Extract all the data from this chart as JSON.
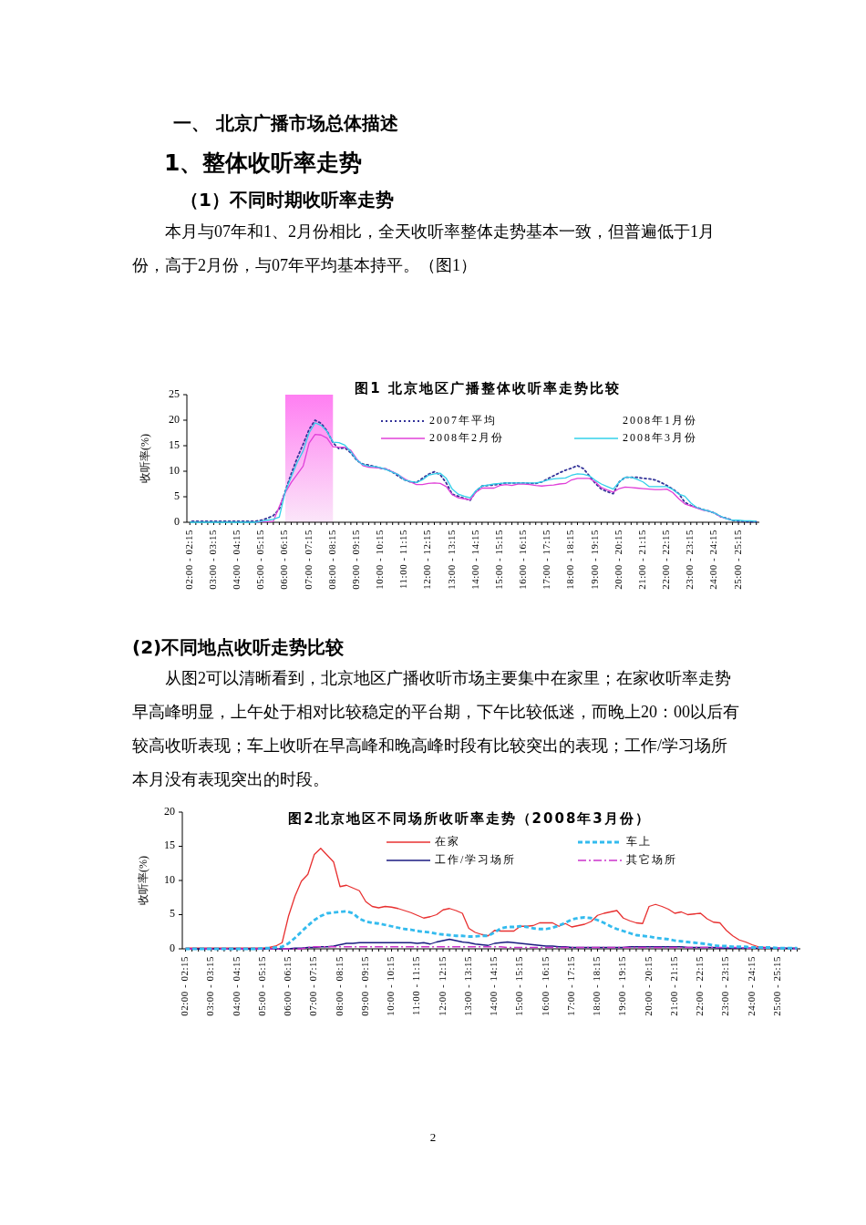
{
  "chart_data": [
    {
      "type": "line",
      "title": "图1  北京地区广播整体收听率走势比较",
      "ylabel": "收听率(%)",
      "legend": "top",
      "annotations": [
        "一、  北京广播市场总体描述",
        "1、整体收听率走势",
        "（1）不同时期收听率走势",
        "本月与07年和1、2月份相比，全天收听率整体走势基本一致，但普遍低于1月份，高于2月份，与07年平均基本持平。（图1）"
      ],
      "ylim": [
        0,
        25
      ],
      "yticks": [
        0,
        5,
        10,
        15,
        20,
        25
      ],
      "categories": [
        "02:00 - 02:15",
        null,
        null,
        null,
        "03:00 - 03:15",
        null,
        null,
        null,
        "04:00 - 04:15",
        null,
        null,
        null,
        "05:00 - 05:15",
        null,
        null,
        null,
        "06:00 - 06:15",
        null,
        null,
        null,
        "07:00 - 07:15",
        null,
        null,
        null,
        "08:00 - 08:15",
        null,
        null,
        null,
        "09:00 - 09:15",
        null,
        null,
        null,
        "10:00 - 10:15",
        null,
        null,
        null,
        "11:00 - 11:15",
        null,
        null,
        null,
        "12:00 - 12:15",
        null,
        null,
        null,
        "13:00 - 13:15",
        null,
        null,
        null,
        "14:00 - 14:15",
        null,
        null,
        null,
        "15:00 - 15:15",
        null,
        null,
        null,
        "16:00 - 16:15",
        null,
        null,
        null,
        "17:00 - 17:15",
        null,
        null,
        null,
        "18:00 - 18:15",
        null,
        null,
        null,
        "19:00 - 19:15",
        null,
        null,
        null,
        "20:00 - 20:15",
        null,
        null,
        null,
        "21:00 - 21:15",
        null,
        null,
        null,
        "22:00 - 22:15",
        null,
        null,
        null,
        "23:00 - 23:15",
        null,
        null,
        null,
        "24:00 - 24:15",
        null,
        null,
        null,
        "25:00 - 25:15",
        null,
        null,
        null
      ],
      "bands": [
        {
          "axis": "x",
          "from": "06:00 - 06:15",
          "to": "08:00 - 08:15",
          "color": "#ff7ff2"
        }
      ],
      "series": [
        {
          "name": "2007年平均",
          "color": "#333399",
          "line_style": "dotted",
          "values": [
            0.2,
            0.2,
            0.2,
            0.2,
            0.2,
            0.2,
            0.2,
            0.2,
            0.2,
            0.2,
            0.2,
            0.2,
            0.4,
            0.8,
            1.3,
            2.6,
            6.1,
            9.5,
            12.6,
            15.3,
            18.2,
            20.0,
            19.4,
            17.9,
            15.6,
            14.4,
            14.6,
            13.6,
            12.1,
            11.4,
            11.2,
            10.9,
            10.6,
            10.4,
            9.8,
            9.0,
            8.3,
            7.9,
            7.8,
            8.6,
            9.4,
            9.9,
            9.3,
            7.7,
            5.5,
            5.1,
            4.7,
            4.3,
            6.1,
            7.1,
            7.2,
            7.3,
            7.5,
            7.7,
            7.7,
            7.7,
            7.7,
            7.6,
            7.6,
            7.9,
            8.5,
            9.1,
            9.7,
            10.2,
            10.6,
            11.1,
            10.5,
            9.1,
            7.6,
            6.5,
            6.0,
            5.6,
            7.9,
            8.8,
            8.8,
            8.8,
            8.6,
            8.5,
            8.3,
            7.8,
            7.2,
            6.5,
            5.6,
            3.9,
            3.3,
            2.9,
            2.5,
            2.2,
            1.8,
            1.1,
            0.8,
            0.4,
            0.2,
            0.2,
            0.1,
            0.1
          ]
        },
        {
          "name": "2008年1月份",
          "line_style": "solid",
          "values": [
            null,
            null,
            null,
            null,
            null,
            null,
            null,
            null,
            null,
            null,
            null,
            null,
            null,
            null,
            null,
            null,
            null,
            null,
            null,
            null,
            null,
            null,
            null,
            null,
            null,
            null,
            null,
            null,
            null,
            null,
            null,
            null,
            null,
            null,
            null,
            null,
            null,
            null,
            null,
            null,
            null,
            null,
            null,
            null,
            null,
            null,
            null,
            null,
            null,
            null,
            null,
            null,
            null,
            null,
            null,
            null,
            null,
            null,
            null,
            null,
            null,
            null,
            null,
            null,
            null,
            null,
            null,
            null,
            null,
            null,
            null,
            null,
            null,
            null,
            null,
            null,
            null,
            null,
            null,
            null,
            null,
            null,
            null,
            null,
            null,
            null,
            null,
            null,
            null,
            null,
            null,
            null,
            null,
            null,
            null,
            null
          ]
        },
        {
          "name": "2008年2月份",
          "color": "#e040d8",
          "line_style": "solid",
          "values": [
            null,
            null,
            null,
            null,
            null,
            null,
            null,
            null,
            null,
            null,
            null,
            0,
            0.1,
            0.1,
            0.2,
            3.1,
            5.8,
            7.8,
            9.4,
            11.0,
            15.5,
            17.2,
            17.1,
            16.5,
            14.8,
            14.7,
            14.7,
            14.1,
            12.4,
            11.1,
            10.8,
            10.7,
            10.6,
            10.4,
            9.9,
            9.3,
            8.5,
            7.9,
            7.4,
            7.4,
            7.6,
            7.7,
            7.6,
            7.0,
            5.4,
            4.8,
            4.6,
            4.4,
            5.9,
            6.7,
            6.7,
            6.7,
            7.2,
            7.4,
            7.2,
            7.5,
            7.5,
            7.4,
            7.2,
            7.1,
            7.2,
            7.3,
            7.5,
            7.6,
            8.3,
            8.6,
            8.6,
            8.6,
            7.9,
            6.8,
            6.3,
            5.9,
            6.6,
            6.9,
            6.8,
            6.7,
            6.6,
            6.5,
            6.4,
            6.4,
            6.5,
            5.8,
            4.6,
            3.6,
            3.2,
            2.8,
            2.4,
            2.2,
            1.8,
            1.1,
            0.7,
            0.4,
            null,
            null,
            null,
            null
          ]
        },
        {
          "name": "2008年3月份",
          "color": "#33d0ea",
          "line_style": "solid",
          "values": [
            0,
            0,
            0,
            0,
            0,
            0,
            0,
            0,
            0,
            0,
            0,
            0,
            0.2,
            0.4,
            0.6,
            1.0,
            6.0,
            8.9,
            11.7,
            14.0,
            17.5,
            19.5,
            19.0,
            17.8,
            15.7,
            15.6,
            15.1,
            13.8,
            12.2,
            11.3,
            11.0,
            10.9,
            10.7,
            10.3,
            9.8,
            9.3,
            8.3,
            8.0,
            7.8,
            8.3,
            9.2,
            9.5,
            9.6,
            8.6,
            6.5,
            5.5,
            5.1,
            4.8,
            6.2,
            7.1,
            7.3,
            7.5,
            7.6,
            7.7,
            7.7,
            7.7,
            7.7,
            7.7,
            7.7,
            7.9,
            8.3,
            8.5,
            8.6,
            8.7,
            9.2,
            9.5,
            9.4,
            9.1,
            8.2,
            7.5,
            7.0,
            6.5,
            7.9,
            8.8,
            8.8,
            8.4,
            7.9,
            7.0,
            7.0,
            7.0,
            7.0,
            6.4,
            5.5,
            5.1,
            3.8,
            2.9,
            2.5,
            2.2,
            1.8,
            1.2,
            0.7,
            0.4,
            0.4,
            0.3,
            0.3,
            0.2
          ]
        }
      ]
    },
    {
      "type": "line",
      "title": "图2北京地区不同场所收听率走势（2008年3月份）",
      "ylabel": "收听率(%)",
      "legend": "top",
      "annotations": [
        "(2)不同地点收听走势比较",
        "从图2可以清晰看到，北京地区广播收听市场主要集中在家里；在家收听率走势早高峰明显，上午处于相对比较稳定的平台期，下午比较低迷，而晚上20：00以后有较高收听表现；车上收听在早高峰和晚高峰时段有比较突出的表现；工作/学习场所本月没有表现突出的时段。",
        "2"
      ],
      "ylim": [
        0,
        20
      ],
      "yticks": [
        0,
        5,
        10,
        15,
        20
      ],
      "categories": [
        "02:00 - 02:15",
        null,
        null,
        null,
        "03:00 - 03:15",
        null,
        null,
        null,
        "04:00 - 04:15",
        null,
        null,
        null,
        "05:00 - 05:15",
        null,
        null,
        null,
        "06:00 - 06:15",
        null,
        null,
        null,
        "07:00 - 07:15",
        null,
        null,
        null,
        "08:00 - 08:15",
        null,
        null,
        null,
        "09:00 - 09:15",
        null,
        null,
        null,
        "10:00 - 10:15",
        null,
        null,
        null,
        "11:00 - 11:15",
        null,
        null,
        null,
        "12:00 - 12:15",
        null,
        null,
        null,
        "13:00 - 13:15",
        null,
        null,
        null,
        "14:00 - 14:15",
        null,
        null,
        null,
        "15:00 - 15:15",
        null,
        null,
        null,
        "16:00 - 16:15",
        null,
        null,
        null,
        "17:00 - 17:15",
        null,
        null,
        null,
        "18:00 - 18:15",
        null,
        null,
        null,
        "19:00 - 19:15",
        null,
        null,
        null,
        "20:00 - 20:15",
        null,
        null,
        null,
        "21:00 - 21:15",
        null,
        null,
        null,
        "22:00 - 22:15",
        null,
        null,
        null,
        "23:00 - 23:15",
        null,
        null,
        null,
        "24:00 - 24:15",
        null,
        null,
        null,
        "25:00 - 25:15",
        null,
        null,
        null
      ],
      "series": [
        {
          "name": "在家",
          "color": "#e83030",
          "line_style": "solid",
          "values": [
            0.1,
            0.1,
            0.1,
            0.1,
            0.1,
            0.1,
            0.1,
            0.1,
            0.1,
            0.1,
            0.1,
            0.1,
            0.1,
            0.2,
            0.4,
            0.9,
            4.8,
            7.7,
            9.9,
            10.9,
            13.8,
            14.7,
            13.7,
            12.7,
            9.1,
            9.3,
            8.9,
            8.5,
            6.9,
            6.2,
            6.0,
            6.2,
            6.1,
            5.9,
            5.6,
            5.3,
            4.9,
            4.5,
            4.7,
            5.0,
            5.7,
            5.9,
            5.6,
            5.2,
            3.0,
            2.4,
            2.1,
            1.9,
            2.7,
            2.6,
            2.6,
            2.6,
            3.3,
            3.3,
            3.4,
            3.8,
            3.8,
            3.8,
            3.3,
            3.7,
            3.2,
            3.4,
            3.6,
            4.0,
            4.9,
            5.2,
            5.4,
            5.6,
            4.5,
            4.1,
            3.8,
            3.7,
            6.2,
            6.5,
            6.2,
            5.8,
            5.2,
            5.4,
            5.0,
            5.1,
            5.2,
            4.4,
            3.9,
            3.8,
            2.7,
            1.9,
            1.3,
            1.0,
            0.6,
            0.3,
            0.2,
            0.1,
            null,
            null,
            null,
            null
          ]
        },
        {
          "name": "车上",
          "color": "#33bbee",
          "line_style": "dashed",
          "values": [
            0,
            0,
            0,
            0,
            0,
            0,
            0,
            0,
            0,
            0,
            0,
            0,
            0.1,
            0.1,
            0.2,
            0.3,
            0.8,
            1.6,
            2.5,
            3.4,
            4.2,
            4.8,
            5.2,
            5.3,
            5.4,
            5.5,
            5.2,
            4.4,
            4.0,
            3.8,
            3.7,
            3.5,
            3.3,
            3.1,
            2.9,
            2.8,
            2.6,
            2.5,
            2.4,
            2.2,
            2.1,
            2.0,
            1.9,
            1.9,
            1.8,
            1.8,
            1.9,
            1.9,
            2.4,
            3.0,
            3.2,
            3.2,
            3.3,
            3.2,
            3.0,
            2.9,
            2.9,
            3.1,
            3.4,
            3.8,
            4.3,
            4.5,
            4.6,
            4.5,
            4.2,
            3.8,
            3.3,
            2.9,
            2.6,
            2.3,
            2.0,
            1.9,
            1.8,
            1.6,
            1.5,
            1.4,
            1.2,
            1.1,
            1.0,
            0.9,
            0.8,
            0.7,
            0.5,
            0.4,
            0.4,
            0.3,
            0.3,
            0.3,
            0.2,
            0.2,
            0.2,
            0.2,
            0.1,
            0.1,
            0.1,
            0.1
          ]
        },
        {
          "name": "工作/学习场所",
          "color": "#1a1a80",
          "line_style": "solid",
          "values": [
            0,
            0,
            0,
            0,
            0,
            0,
            0,
            0,
            0,
            0,
            0,
            0,
            0,
            0,
            0,
            0,
            0,
            0.1,
            0.1,
            0.2,
            0.2,
            0.3,
            0.3,
            0.4,
            0.6,
            0.8,
            0.8,
            0.9,
            0.9,
            0.9,
            0.9,
            0.9,
            0.9,
            0.9,
            0.9,
            0.9,
            0.8,
            0.9,
            0.7,
            1.0,
            1.2,
            1.4,
            1.2,
            1.0,
            0.9,
            0.7,
            0.6,
            0.5,
            0.8,
            0.9,
            1.0,
            0.9,
            0.8,
            0.7,
            0.6,
            0.5,
            0.4,
            0.4,
            0.3,
            0.3,
            0.2,
            0.2,
            0.2,
            0.2,
            0.2,
            0.2,
            0.2,
            0.2,
            0.2,
            0.3,
            0.3,
            0.3,
            0.3,
            0.3,
            0.3,
            0.3,
            0.3,
            0.3,
            0.2,
            0.2,
            0.2,
            0.2,
            0.2,
            0.1,
            0.1,
            0.1,
            0.1,
            0.1,
            0.1,
            0.1,
            0.1,
            0.1,
            0.1,
            0.1,
            0.1,
            0.1
          ]
        },
        {
          "name": "其它场所",
          "color": "#cc33cc",
          "line_style": "dashdot",
          "values": [
            0,
            0,
            0,
            0,
            0,
            0,
            0,
            0,
            0,
            0,
            0,
            0,
            0,
            0,
            0,
            0,
            0,
            0,
            0,
            0.2,
            0.3,
            0.3,
            0.3,
            0.3,
            0.3,
            0.3,
            0.3,
            0.3,
            0.3,
            0.3,
            0.3,
            0.3,
            0.3,
            0.3,
            0.3,
            0.3,
            0.3,
            0.3,
            0.3,
            0.3,
            0.3,
            0.3,
            0.3,
            0.3,
            0.3,
            0.3,
            0.3,
            0.3,
            0.3,
            0.3,
            0.2,
            0.2,
            0.2,
            0.2,
            0.2,
            0.2,
            0.2,
            0.2,
            0.2,
            0.2,
            0.2,
            0.2,
            0.2,
            0.2,
            0.2,
            0.2,
            0.2,
            0.2,
            0.2,
            0.2,
            0.2,
            0.2,
            0.2,
            0.2,
            0.2,
            0.2,
            0.2,
            0.2,
            0.2,
            0.2,
            0.2,
            0.2,
            0.2,
            0.2,
            0.2,
            0.2,
            0.2,
            0.1,
            0.1,
            0.1,
            0.1,
            0.1,
            0.1,
            0.1,
            0,
            0
          ]
        }
      ]
    }
  ]
}
